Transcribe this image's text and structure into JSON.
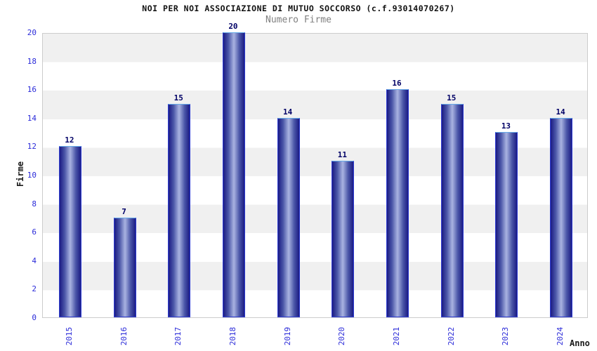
{
  "title": "NOI PER NOI ASSOCIAZIONE DI MUTUO SOCCORSO (c.f.93014070267)",
  "subtitle": "Numero Firme",
  "axis_titles": {
    "y": "Firme",
    "x": "Anno"
  },
  "colors": {
    "title_text": "#111111",
    "subtitle_text": "#808080",
    "axis_title_text": "#1a1a1a",
    "tick_label": "#2b2bd9",
    "value_label": "#000066",
    "band_gray": "#f0f0f0",
    "band_white": "#ffffff",
    "plot_border": "#cccccc",
    "bar_dark": "#1b1b84",
    "bar_mid": "#4b57a8",
    "bar_light": "#a9b3e1",
    "bar_edge": "#2e3cd2",
    "bar_top_edge": "#66aae8"
  },
  "chart_data": {
    "type": "bar",
    "title": "NOI PER NOI ASSOCIAZIONE DI MUTUO SOCCORSO (c.f.93014070267)",
    "subtitle": "Numero Firme",
    "categories": [
      "2015",
      "2016",
      "2017",
      "2018",
      "2019",
      "2020",
      "2021",
      "2022",
      "2023",
      "2024"
    ],
    "values": [
      12,
      7,
      15,
      20,
      14,
      11,
      16,
      15,
      13,
      14
    ],
    "bar_value_labels": [
      "12",
      "7",
      "15",
      "20",
      "14",
      "11",
      "16",
      "15",
      "13",
      "14"
    ],
    "xlabel": "Anno",
    "ylabel": "Firme",
    "ylim": [
      0,
      20
    ],
    "ytick_step": 2,
    "ytick_labels": [
      "0",
      "2",
      "4",
      "6",
      "8",
      "10",
      "12",
      "14",
      "16",
      "18",
      "20"
    ],
    "grid": "alternating-horizontal-bands",
    "legend": "none"
  }
}
